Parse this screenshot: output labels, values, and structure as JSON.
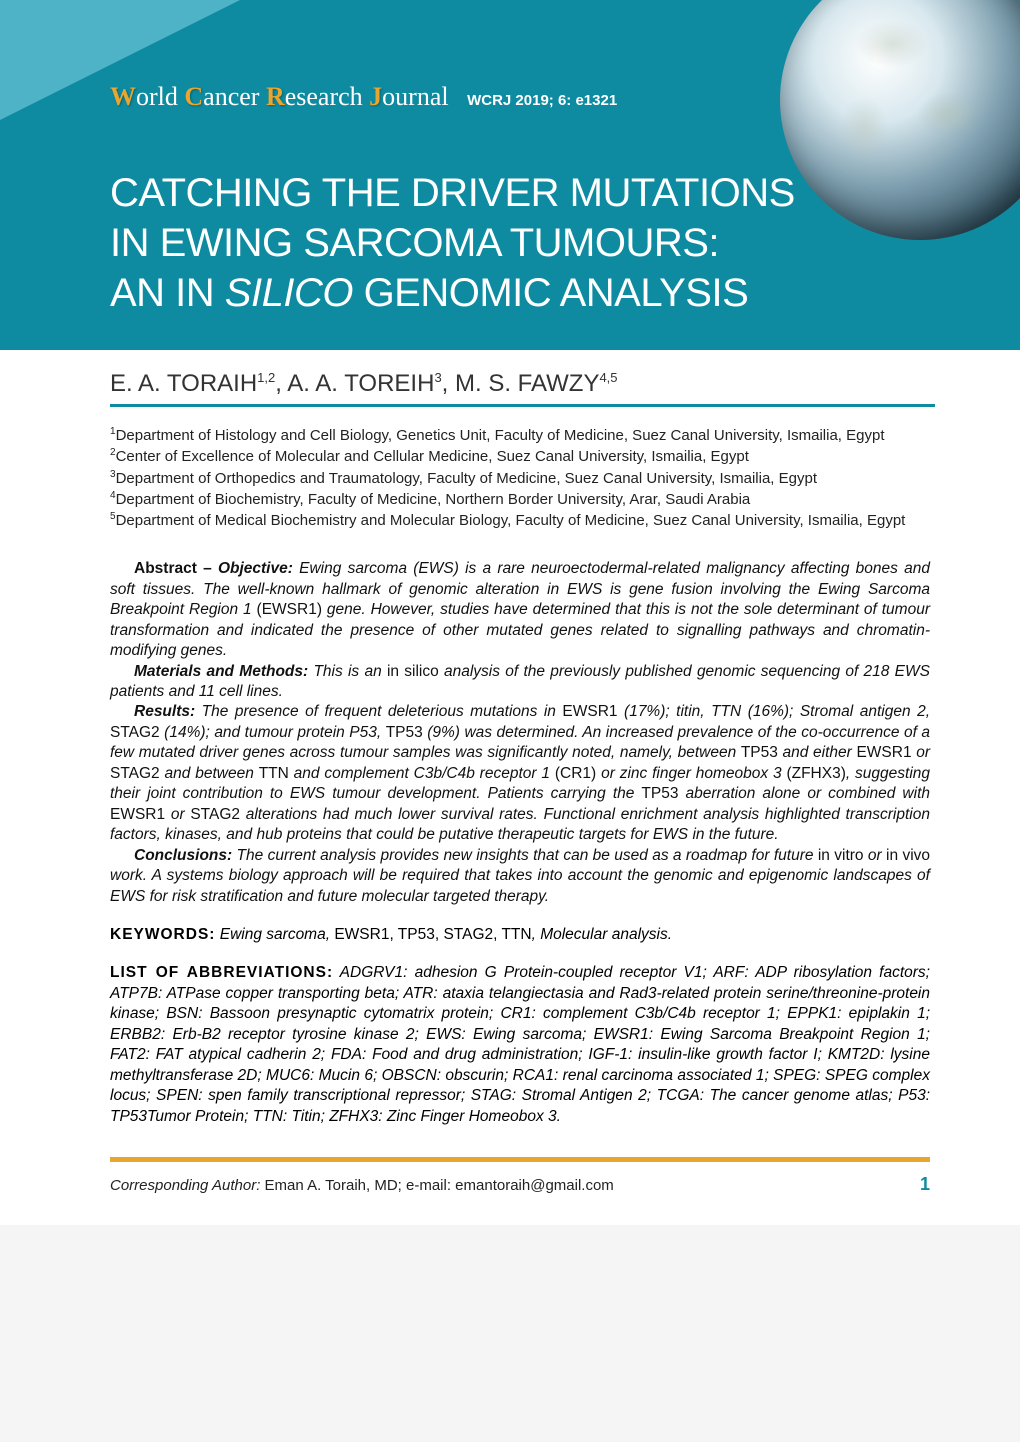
{
  "colors": {
    "teal": "#0e8ba0",
    "light_teal": "#4fb3c7",
    "accent_orange": "#e8a530",
    "white": "#ffffff",
    "text": "#111111"
  },
  "journal": {
    "w": "W",
    "orld": "orld ",
    "c": "C",
    "ancer": "ancer ",
    "r": "R",
    "esearch": "esearch ",
    "j": "J",
    "ournal": "ournal",
    "reference": "WCRJ 2019; 6: e1321"
  },
  "title": {
    "line1": "CATCHING THE DRIVER MUTATIONS",
    "line2": "IN EWING SARCOMA TUMOURS:",
    "line3_a": "AN IN ",
    "line3_b_italic": "SILICO",
    "line3_c": " GENOMIC ANALYSIS"
  },
  "authors": {
    "a1_name": "E. A. TORAIH",
    "a1_sup": "1,2",
    "a2_name": ", A. A. TOREIH",
    "a2_sup": "3",
    "a3_name": ", M. S. FAWZY",
    "a3_sup": "4,5"
  },
  "affiliations": {
    "a1_sup": "1",
    "a1": "Department of Histology and Cell Biology, Genetics Unit, Faculty of Medicine, Suez Canal University, Ismailia, Egypt",
    "a2_sup": "2",
    "a2": "Center of Excellence of Molecular and Cellular Medicine, Suez Canal University, Ismailia, Egypt",
    "a3_sup": "3",
    "a3": "Department of Orthopedics and Traumatology, Faculty of Medicine, Suez Canal University, Ismailia, Egypt",
    "a4_sup": "4",
    "a4": "Department of Biochemistry, Faculty of Medicine, Northern Border University, Arar, Saudi Arabia",
    "a5_sup": "5",
    "a5": "Department of Medical Biochemistry and Molecular Biology, Faculty of Medicine, Suez Canal University, Ismailia, Egypt"
  },
  "abstract": {
    "label": "Abstract – ",
    "objective_head": "Objective:",
    "objective_text_a": " Ewing sarcoma (EWS) is a rare neuroectodermal-related malignancy affecting bones and soft tissues. The well-known hallmark of genomic alteration in EWS is gene fusion involving the Ewing Sarcoma Breakpoint Region 1 ",
    "objective_ewsr1": "(EWSR1)",
    "objective_text_b": " gene. However, studies have determined that this is not the sole determinant of tumour transformation and indicated the presence of other mutated genes related to signalling pathways and chromatin-modifying genes.",
    "methods_head": "Materials and Methods:",
    "methods_text_a": " This is an ",
    "methods_insilico": "in silico",
    "methods_text_b": " analysis of the previously published genomic sequencing of 218 EWS patients and 11 cell lines.",
    "results_head": "Results:",
    "results_text_a": " The presence of frequent deleterious mutations in ",
    "results_g1": "EWSR1",
    "results_text_b": " (17%); titin, TTN (16%); Stromal antigen 2, ",
    "results_g2": "STAG2",
    "results_text_c": " (14%); and tumour protein P53, ",
    "results_g3": "TP53",
    "results_text_d": " (9%) was determined. An increased prevalence of the co-occurrence of a few mutated driver genes across tumour samples was significantly noted, namely, between ",
    "results_g4": "TP53",
    "results_text_e": " and either ",
    "results_g5": "EWSR1",
    "results_text_f": " or ",
    "results_g6": "STAG2",
    "results_text_g": " and between ",
    "results_g7": "TTN",
    "results_text_h": " and complement C3b/C4b receptor 1 ",
    "results_g8": "(CR1)",
    "results_text_i": " or zinc finger homeobox 3 ",
    "results_g9": "(ZFHX3)",
    "results_text_j": ", suggesting their joint contribution to EWS tumour development. Patients carrying the ",
    "results_g10": "TP53",
    "results_text_k": " aberration alone or combined with ",
    "results_g11": "EWSR1",
    "results_text_l": " or ",
    "results_g12": "STAG2",
    "results_text_m": " alterations had much lower survival rates. Functional enrichment analysis highlighted transcription factors, kinases, and hub proteins that could be putative therapeutic targets for EWS in the future.",
    "conclusions_head": "Conclusions:",
    "conclusions_text_a": " The current analysis provides new insights that can be used as a roadmap for future ",
    "conclusions_invitro": "in vitro",
    "conclusions_text_b": " or ",
    "conclusions_invivo": "in vivo",
    "conclusions_text_c": " work. A systems biology approach will be required that takes into account the genomic and epigenomic landscapes of EWS for risk stratification and future molecular targeted therapy."
  },
  "keywords": {
    "label": "KEYWORDS:",
    "text_a": " Ewing sarcoma, ",
    "g1": "EWSR1, TP53, STAG2, TTN",
    "text_b": ", Molecular analysis."
  },
  "abbreviations": {
    "label": "LIST OF ABBREVIATIONS:",
    "text": " ADGRV1: adhesion G Protein-coupled receptor V1; ARF: ADP ribosylation factors; ATP7B: ATPase copper transporting beta; ATR: ataxia telangiectasia and Rad3-related protein serine/threonine-protein kinase; BSN: Bassoon presynaptic cytomatrix protein; CR1: complement C3b/C4b receptor 1; EPPK1: epiplakin 1; ERBB2: Erb-B2 receptor tyrosine kinase 2; EWS: Ewing sarcoma; EWSR1: Ewing Sarcoma Breakpoint Region 1; FAT2: FAT atypical cadherin 2; FDA: Food and drug administration; IGF-1: insulin-like growth factor I; KMT2D: lysine methyltransferase 2D; MUC6: Mucin 6; OBSCN: obscurin; RCA1: renal carcinoma associated 1; SPEG: SPEG complex locus; SPEN: spen family transcriptional repressor; STAG: Stromal Antigen 2; TCGA: The cancer genome atlas; P53: TP53Tumor Protein; TTN: Titin; ZFHX3: Zinc Finger Homeobox 3."
  },
  "footer": {
    "corr_label": "Corresponding Author: ",
    "corr_value": "Eman A. Toraih, MD; e-mail: emantoraih@gmail.com",
    "page_number": "1"
  }
}
